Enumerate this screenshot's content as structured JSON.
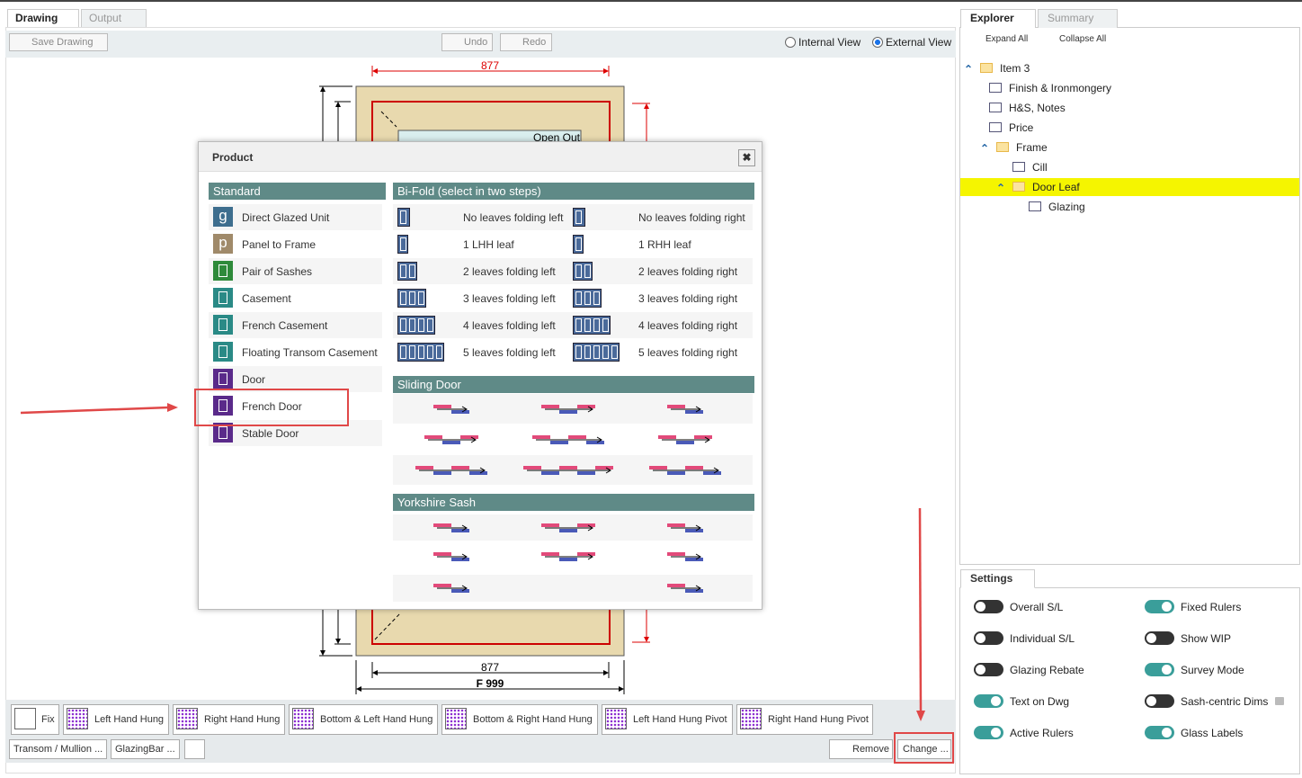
{
  "left_tabs": [
    "Drawing",
    "Output"
  ],
  "toolbar": {
    "save": "Save Drawing",
    "undo": "Undo",
    "redo": "Redo",
    "views": [
      "Internal View",
      "External View"
    ],
    "selected_view": 1
  },
  "drawing": {
    "top_dim": "877",
    "open_label": "Open Out",
    "bottom_dim": "877",
    "frame_label": "F 999"
  },
  "dialog": {
    "title": "Product",
    "standard": {
      "header": "Standard",
      "items": [
        {
          "label": "Direct Glazed Unit",
          "icon": "g"
        },
        {
          "label": "Panel to Frame",
          "icon": "p"
        },
        {
          "label": "Pair of Sashes"
        },
        {
          "label": "Casement"
        },
        {
          "label": "French Casement"
        },
        {
          "label": "Floating Transom Casement"
        },
        {
          "label": "Door"
        },
        {
          "label": "French Door"
        },
        {
          "label": "Stable Door"
        }
      ]
    },
    "bifold": {
      "header": "Bi-Fold (select in two steps)",
      "items": [
        {
          "left": "No leaves folding left",
          "right": "No leaves folding right"
        },
        {
          "left": "1 LHH leaf",
          "right": "1 RHH leaf"
        },
        {
          "left": "2 leaves folding left",
          "right": "2 leaves folding right"
        },
        {
          "left": "3 leaves folding left",
          "right": "3 leaves folding right"
        },
        {
          "left": "4 leaves folding left",
          "right": "4 leaves folding right"
        },
        {
          "left": "5 leaves folding left",
          "right": "5 leaves folding right"
        }
      ]
    },
    "sliding": {
      "header": "Sliding Door"
    },
    "yorkshire": {
      "header": "Yorkshire Sash"
    }
  },
  "bottom_toolbar": {
    "hung": [
      "Fix",
      "Left Hand Hung",
      "Right Hand Hung",
      "Bottom & Left Hand Hung",
      "Bottom & Right Hand Hung",
      "Left Hand Hung Pivot",
      "Right Hand Hung Pivot"
    ],
    "transom": "Transom / Mullion ...",
    "glazing_bar": "GlazingBar ...",
    "remove": "Remove",
    "change": "Change ..."
  },
  "explorer": {
    "tabs": [
      "Explorer",
      "Summary"
    ],
    "expand": "Expand All",
    "collapse": "Collapse All",
    "tree": [
      "Item 3",
      "Finish & Ironmongery",
      "H&S, Notes",
      "Price",
      "Frame",
      "Cill",
      "Door Leaf",
      "Glazing"
    ]
  },
  "settings": {
    "title": "Settings",
    "toggles": [
      {
        "label": "Overall S/L",
        "on": false
      },
      {
        "label": "Fixed Rulers",
        "on": true
      },
      {
        "label": "Individual S/L",
        "on": false
      },
      {
        "label": "Show WIP",
        "on": false
      },
      {
        "label": "Glazing Rebate",
        "on": false
      },
      {
        "label": "Survey Mode",
        "on": true
      },
      {
        "label": "Text on Dwg",
        "on": true
      },
      {
        "label": "Sash-centric Dims",
        "on": false
      },
      {
        "label": "Active Rulers",
        "on": true
      },
      {
        "label": "Glass Labels",
        "on": true
      }
    ]
  }
}
